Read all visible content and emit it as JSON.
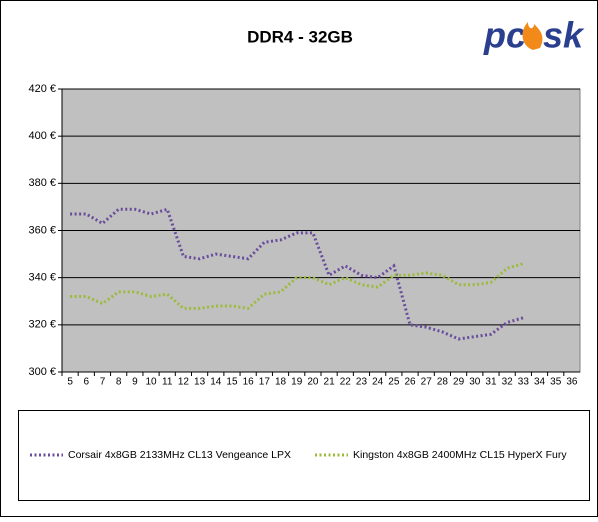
{
  "chart_data": {
    "type": "line",
    "title": "DDR4 - 32GB",
    "logo": [
      "pc",
      "sk"
    ],
    "categories": [
      "5",
      "6",
      "7",
      "8",
      "9",
      "10",
      "11",
      "12",
      "13",
      "14",
      "15",
      "16",
      "17",
      "18",
      "19",
      "20",
      "21",
      "22",
      "23",
      "24",
      "25",
      "26",
      "27",
      "28",
      "29",
      "30",
      "31",
      "32",
      "33",
      "34",
      "35",
      "36"
    ],
    "series": [
      {
        "name": "Corsair 4x8GB 2133MHz CL13 Vengeance LPX",
        "color": "#6a4c9c",
        "values": [
          367,
          367,
          363,
          369,
          369,
          367,
          369,
          349,
          348,
          350,
          349,
          348,
          355,
          356,
          359,
          359,
          341,
          345,
          341,
          340,
          345,
          320,
          319,
          317,
          314,
          315,
          316,
          321,
          323,
          null,
          null,
          null
        ]
      },
      {
        "name": "Kingston 4x8GB 2400MHz CL15 HyperX Fury",
        "color": "#9bbb3b",
        "values": [
          332,
          332,
          329,
          334,
          334,
          332,
          333,
          327,
          327,
          328,
          328,
          327,
          333,
          334,
          340,
          340,
          337,
          340,
          337,
          336,
          341,
          341,
          342,
          341,
          337,
          337,
          338,
          344,
          346,
          null,
          null,
          null
        ]
      }
    ],
    "ylim": [
      300,
      420
    ],
    "yticks": [
      {
        "value": 300,
        "label": "300 €"
      },
      {
        "value": 320,
        "label": "320 €"
      },
      {
        "value": 340,
        "label": "340 €"
      },
      {
        "value": 360,
        "label": "360 €"
      },
      {
        "value": 380,
        "label": "380 €"
      },
      {
        "value": 400,
        "label": "400 €"
      },
      {
        "value": 420,
        "label": "420 €"
      }
    ],
    "grid": true
  }
}
